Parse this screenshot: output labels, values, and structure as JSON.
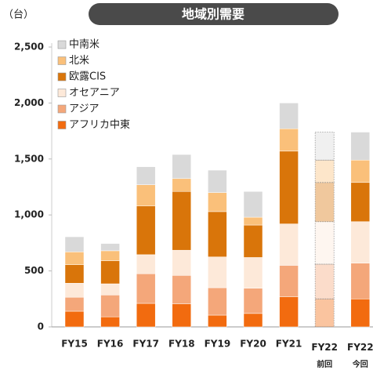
{
  "chart_data": {
    "type": "stacked_bar",
    "title": "地域別需要",
    "y_axis_label": "（台）",
    "categories": [
      "FY15",
      "FY16",
      "FY17",
      "FY18",
      "FY19",
      "FY20",
      "FY21",
      "FY22 前回",
      "FY22 今回"
    ],
    "bar_styles": [
      "solid",
      "solid",
      "solid",
      "solid",
      "solid",
      "solid",
      "solid",
      "dotted",
      "solid"
    ],
    "series": [
      {
        "name": "アフリカ中東",
        "color": "#f26b0f",
        "values": [
          140,
          90,
          210,
          205,
          105,
          120,
          270,
          250,
          250
        ]
      },
      {
        "name": "アジア",
        "color": "#f4a77a",
        "values": [
          125,
          195,
          265,
          255,
          245,
          225,
          280,
          310,
          320
        ]
      },
      {
        "name": "オセアニア",
        "color": "#fde9d9",
        "values": [
          125,
          100,
          170,
          225,
          275,
          275,
          370,
          380,
          370
        ]
      },
      {
        "name": "欧露CIS",
        "color": "#d9750a",
        "values": [
          165,
          205,
          435,
          525,
          405,
          290,
          650,
          350,
          350
        ]
      },
      {
        "name": "北米",
        "color": "#fac07a",
        "values": [
          115,
          90,
          190,
          115,
          170,
          70,
          200,
          200,
          200
        ]
      },
      {
        "name": "中南米",
        "color": "#d9d9d9",
        "values": [
          135,
          65,
          160,
          215,
          200,
          230,
          230,
          250,
          250
        ]
      }
    ],
    "ylim": [
      0,
      2500
    ],
    "yticks": [
      0,
      500,
      {
        "value": 1000,
        "label": "1,000"
      },
      {
        "value": 1500,
        "label": "1,500"
      },
      {
        "value": 2000,
        "label": "2,000"
      },
      {
        "value": 2500,
        "label": "2,500"
      }
    ],
    "legend": "top-left"
  }
}
